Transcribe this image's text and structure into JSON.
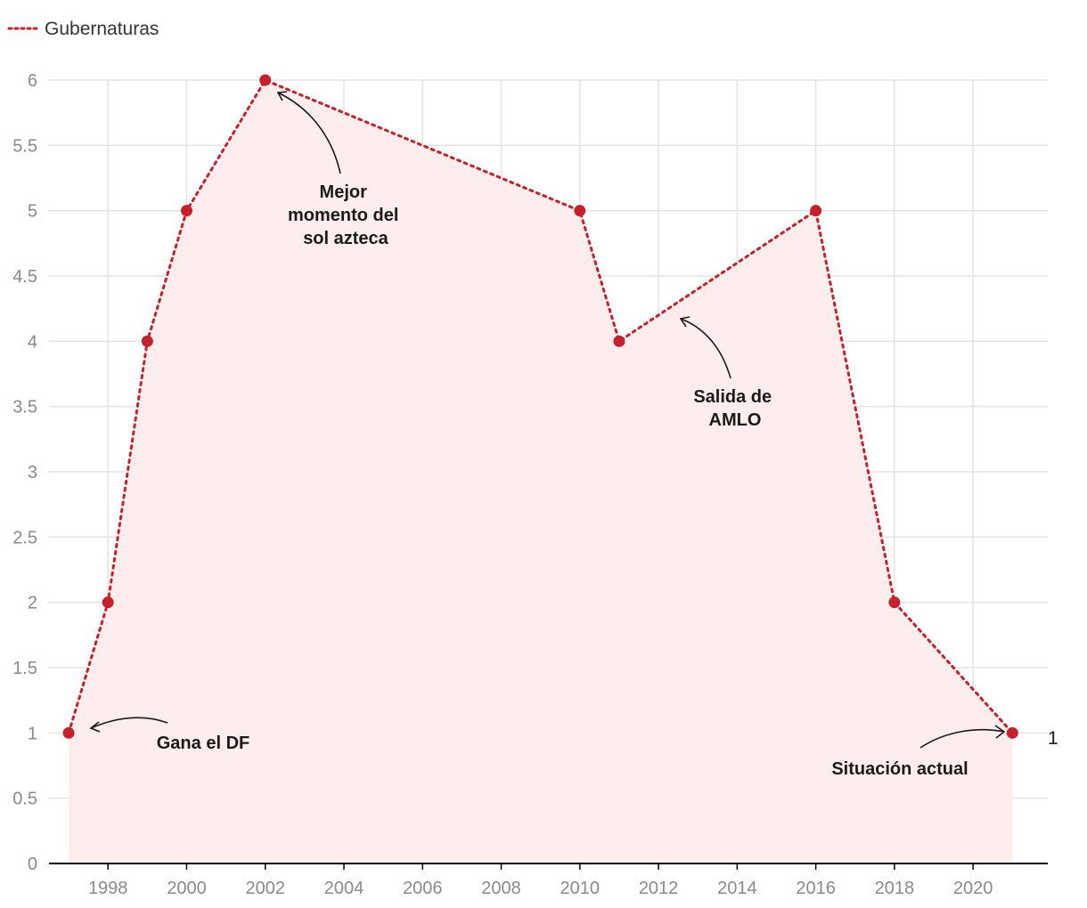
{
  "chart_data": {
    "type": "line",
    "legend": {
      "label": "Gubernaturas",
      "position": "top-left"
    },
    "series": [
      {
        "name": "Gubernaturas",
        "x": [
          1997,
          1998,
          1999,
          2000,
          2002,
          2010,
          2011,
          2016,
          2018,
          2021
        ],
        "values": [
          1,
          2,
          4,
          5,
          6,
          5,
          4,
          5,
          2,
          1
        ]
      }
    ],
    "x_ticks": [
      "1998",
      "2000",
      "2002",
      "2004",
      "2006",
      "2008",
      "2010",
      "2012",
      "2014",
      "2016",
      "2018",
      "2020"
    ],
    "y_ticks": [
      "0",
      "0.5",
      "1",
      "1.5",
      "2",
      "2.5",
      "3",
      "3.5",
      "4",
      "4.5",
      "5",
      "5.5",
      "6"
    ],
    "xlim": [
      1996.5,
      2021.9
    ],
    "ylim": [
      0,
      6
    ],
    "grid": true,
    "end_label": "1",
    "annotations": [
      {
        "lines": [
          "Mejor",
          "momento del",
          "sol azteca"
        ]
      },
      {
        "lines": [
          "Salida de",
          "AMLO"
        ]
      },
      {
        "lines": [
          "Gana el DF"
        ]
      },
      {
        "lines": [
          "Situación actual"
        ]
      }
    ],
    "colors": {
      "line": "#c8202a",
      "area": "#fdeeed",
      "grid": "#e3e3e3",
      "axis": "#000000"
    }
  }
}
